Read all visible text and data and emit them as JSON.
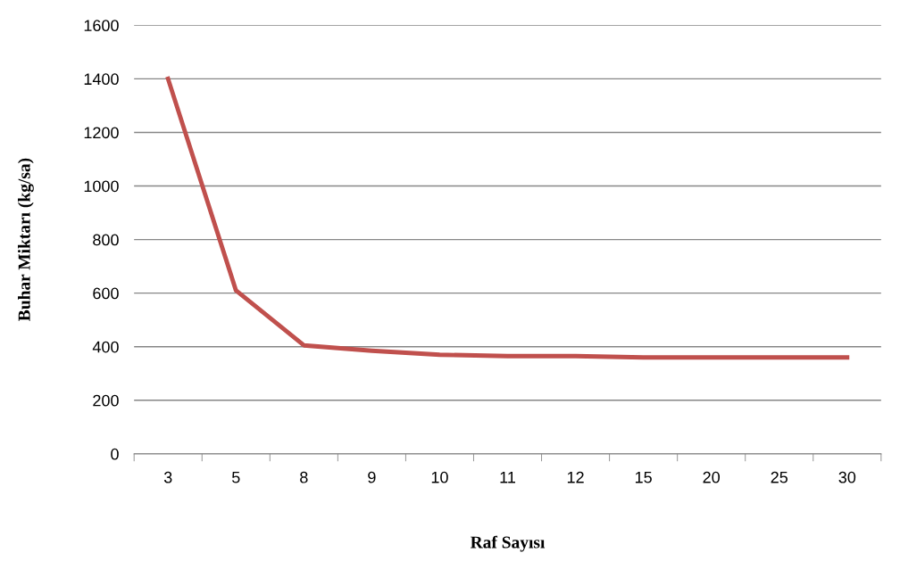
{
  "chart_data": {
    "type": "line",
    "xlabel": "Raf Sayısı",
    "ylabel": "Buhar Miktarı (kg/sa)",
    "categories": [
      "3",
      "5",
      "8",
      "9",
      "10",
      "11",
      "12",
      "15",
      "20",
      "25",
      "30"
    ],
    "series": [
      {
        "color": "#c0504d",
        "values": [
          1400,
          610,
          405,
          385,
          370,
          365,
          365,
          360,
          360,
          360,
          360
        ]
      }
    ],
    "ylim": [
      0,
      1600
    ],
    "yticks": [
      0,
      200,
      400,
      600,
      800,
      1000,
      1200,
      1400,
      1600
    ],
    "grid": "y",
    "legend": false,
    "marker": "none",
    "line_style": "solid"
  }
}
